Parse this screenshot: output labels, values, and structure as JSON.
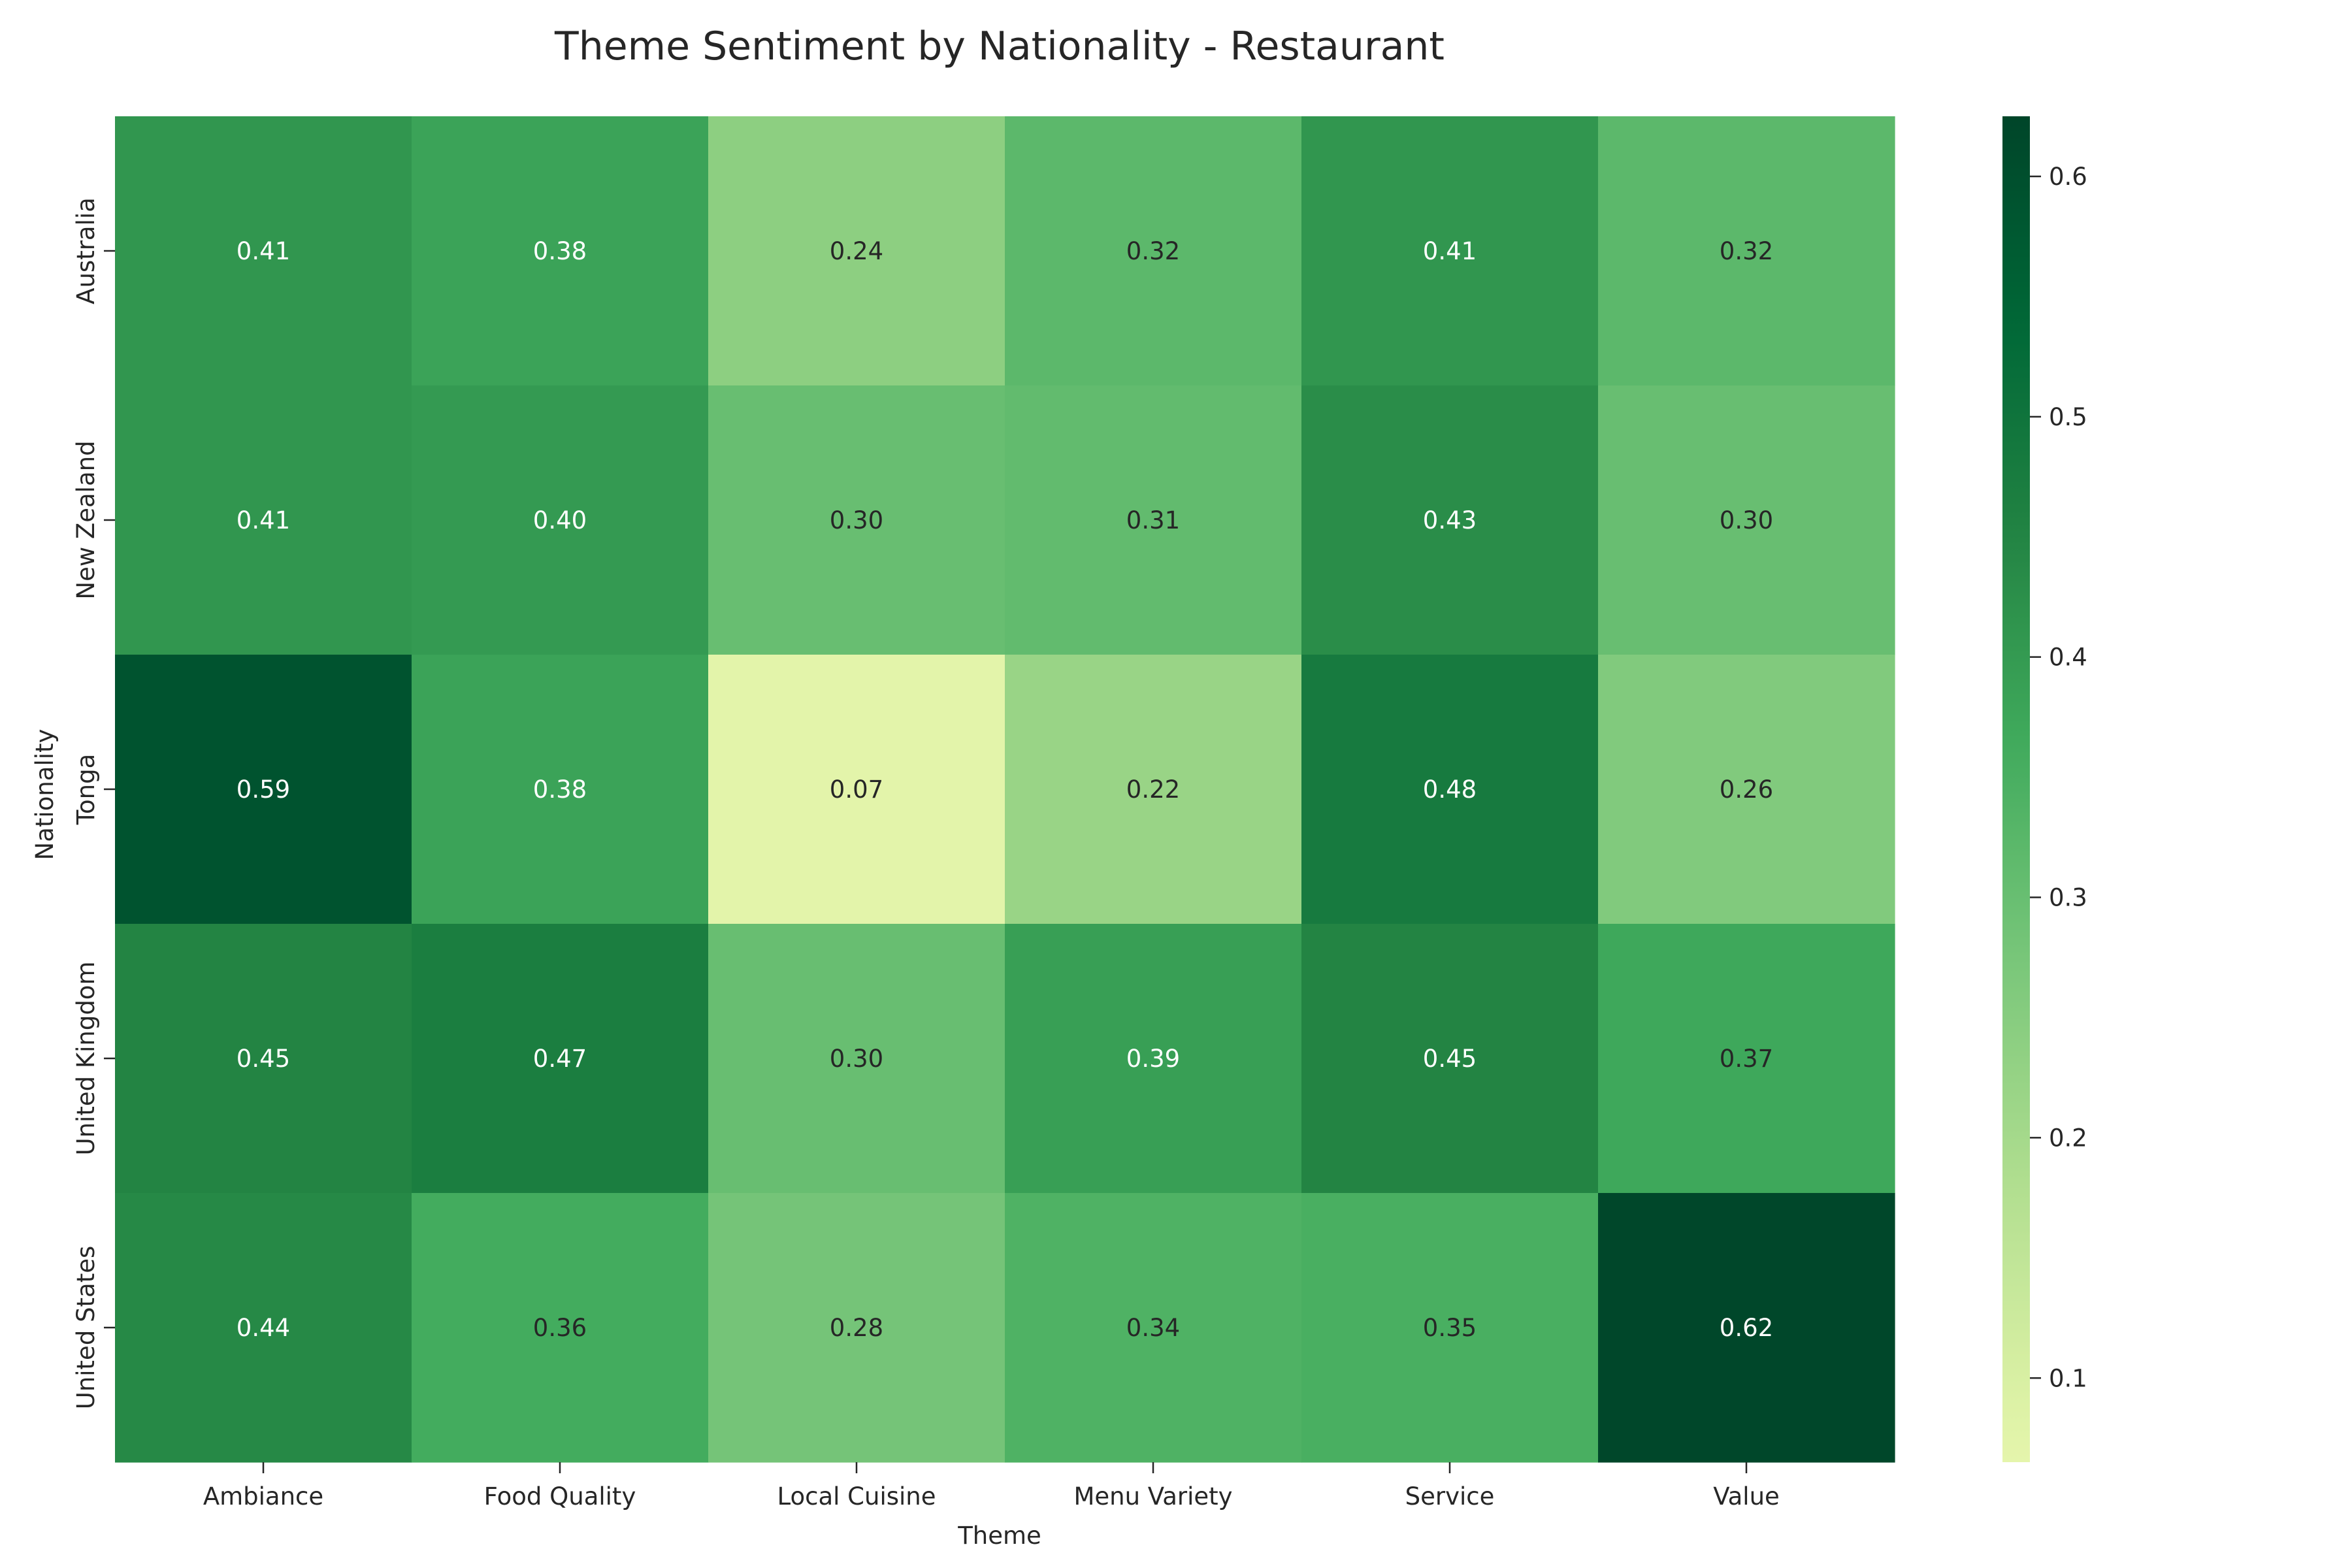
{
  "chart_data": {
    "type": "heatmap",
    "title": "Theme Sentiment by Nationality - Restaurant",
    "xlabel": "Theme",
    "ylabel": "Nationality",
    "x_categories": [
      "Ambiance",
      "Food Quality",
      "Local Cuisine",
      "Menu Variety",
      "Service",
      "Value"
    ],
    "y_categories": [
      "Australia",
      "New Zealand",
      "Tonga",
      "United Kingdom",
      "United States"
    ],
    "values": [
      [
        0.41,
        0.38,
        0.24,
        0.32,
        0.41,
        0.32
      ],
      [
        0.41,
        0.4,
        0.3,
        0.31,
        0.43,
        0.3
      ],
      [
        0.59,
        0.38,
        0.07,
        0.22,
        0.48,
        0.26
      ],
      [
        0.45,
        0.47,
        0.3,
        0.39,
        0.45,
        0.37
      ],
      [
        0.44,
        0.36,
        0.28,
        0.34,
        0.35,
        0.62
      ]
    ],
    "annotation_format": "0.00",
    "colorbar": {
      "range": [
        0.065,
        0.625
      ],
      "ticks": [
        0.1,
        0.2,
        0.3,
        0.4,
        0.5,
        0.6
      ],
      "tick_labels": [
        "0.1",
        "0.2",
        "0.3",
        "0.4",
        "0.5",
        "0.6"
      ],
      "colormap": "YlGn",
      "colormap_range": [
        0.2,
        1.0
      ]
    },
    "colors": {
      "text_dark": "#262626",
      "text_light": "#ffffff"
    }
  }
}
